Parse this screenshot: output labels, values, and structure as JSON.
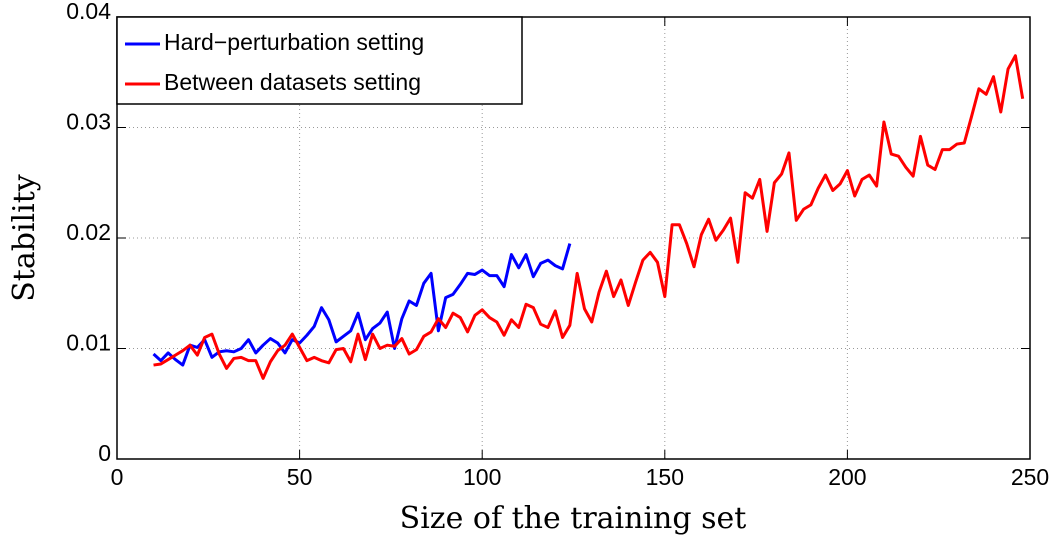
{
  "chart_data": {
    "type": "line",
    "xlabel": "Size of the training set",
    "ylabel": "Stability",
    "x": [
      10,
      12,
      14,
      16,
      18,
      20,
      22,
      24,
      26,
      28,
      30,
      32,
      34,
      36,
      38,
      40,
      42,
      44,
      46,
      48,
      50,
      52,
      54,
      56,
      58,
      60,
      62,
      64,
      66,
      68,
      70,
      72,
      74,
      76,
      78,
      80,
      82,
      84,
      86,
      88,
      90,
      92,
      94,
      96,
      98,
      100,
      102,
      104,
      106,
      108,
      110,
      112,
      114,
      116,
      118,
      120,
      122,
      124,
      126,
      128,
      130,
      132,
      134,
      136,
      138,
      140,
      142,
      144,
      146,
      148,
      150,
      152,
      154,
      156,
      158,
      160,
      162,
      164,
      166,
      168,
      170,
      172,
      174,
      176,
      178,
      180,
      182,
      184,
      186,
      188,
      190,
      192,
      194,
      196,
      198,
      200,
      202,
      204,
      206,
      208,
      210,
      212,
      214,
      216,
      218,
      220,
      222,
      224,
      226,
      228,
      230,
      232,
      234,
      236,
      238,
      240,
      242,
      244,
      246,
      248
    ],
    "series": [
      {
        "name": "Hard−perturbation setting",
        "color": "#0000ff",
        "values": [
          0.0095,
          0.0089,
          0.0096,
          0.009,
          0.0085,
          0.0103,
          0.0101,
          0.0108,
          0.0092,
          0.0097,
          0.0098,
          0.0097,
          0.01,
          0.0108,
          0.0096,
          0.0103,
          0.0109,
          0.0105,
          0.0096,
          0.0108,
          0.0105,
          0.0112,
          0.012,
          0.0137,
          0.0126,
          0.0106,
          0.0111,
          0.0116,
          0.0132,
          0.0108,
          0.0118,
          0.0123,
          0.0133,
          0.01,
          0.0127,
          0.0143,
          0.0139,
          0.0159,
          0.0168,
          0.0116,
          0.0146,
          0.0149,
          0.0158,
          0.0168,
          0.0167,
          0.0171,
          0.0166,
          0.0166,
          0.0156,
          0.0185,
          0.0173,
          0.0185,
          0.0165,
          0.0177,
          0.018,
          0.0175,
          0.0172,
          0.0195,
          null,
          null,
          null,
          null,
          null,
          null,
          null,
          null,
          null,
          null,
          null,
          null,
          null,
          null,
          null,
          null,
          null,
          null,
          null,
          null,
          null,
          null,
          null,
          null,
          null,
          null,
          null,
          null,
          null,
          null,
          null,
          null,
          null,
          null,
          null,
          null,
          null,
          null,
          null,
          null,
          null,
          null,
          null,
          null,
          null,
          null,
          null,
          null,
          null,
          null,
          null,
          null,
          null,
          null,
          null,
          null,
          null,
          null,
          null,
          null,
          null,
          null
        ]
      },
      {
        "name": "Between datasets setting",
        "color": "#ff0000",
        "values": [
          0.0085,
          0.0086,
          0.009,
          0.0094,
          0.0098,
          0.0103,
          0.0094,
          0.011,
          0.0113,
          0.0095,
          0.0082,
          0.0091,
          0.0092,
          0.0089,
          0.0089,
          0.0073,
          0.0088,
          0.0098,
          0.0103,
          0.0113,
          0.0101,
          0.0089,
          0.0092,
          0.0089,
          0.0087,
          0.0099,
          0.01,
          0.0088,
          0.0113,
          0.009,
          0.0113,
          0.01,
          0.0103,
          0.0102,
          0.0109,
          0.0095,
          0.0099,
          0.0111,
          0.0115,
          0.0127,
          0.0119,
          0.0132,
          0.0128,
          0.0115,
          0.013,
          0.0135,
          0.0128,
          0.0124,
          0.0112,
          0.0126,
          0.0119,
          0.014,
          0.0137,
          0.0122,
          0.0119,
          0.0134,
          0.011,
          0.0121,
          0.0168,
          0.0136,
          0.0124,
          0.0151,
          0.017,
          0.0147,
          0.0162,
          0.0139,
          0.016,
          0.018,
          0.0187,
          0.0178,
          0.0147,
          0.0212,
          0.0212,
          0.0195,
          0.0174,
          0.0203,
          0.0217,
          0.0198,
          0.0207,
          0.0218,
          0.0178,
          0.0241,
          0.0236,
          0.0253,
          0.0206,
          0.025,
          0.0258,
          0.0277,
          0.0216,
          0.0226,
          0.023,
          0.0245,
          0.0257,
          0.0243,
          0.0249,
          0.0261,
          0.0238,
          0.0253,
          0.0257,
          0.0247,
          0.0305,
          0.0276,
          0.0274,
          0.0264,
          0.0256,
          0.0292,
          0.0266,
          0.0262,
          0.028,
          0.028,
          0.0285,
          0.0286,
          0.031,
          0.0335,
          0.033,
          0.0346,
          0.0314,
          0.0353,
          0.0365,
          0.0326
        ]
      }
    ],
    "xlim": [
      0,
      250
    ],
    "ylim": [
      0,
      0.04
    ],
    "xticks": [
      0,
      50,
      100,
      150,
      200,
      250
    ],
    "yticks": [
      0,
      0.01,
      0.02,
      0.03,
      0.04
    ],
    "grid": true,
    "legend": "upper left"
  }
}
